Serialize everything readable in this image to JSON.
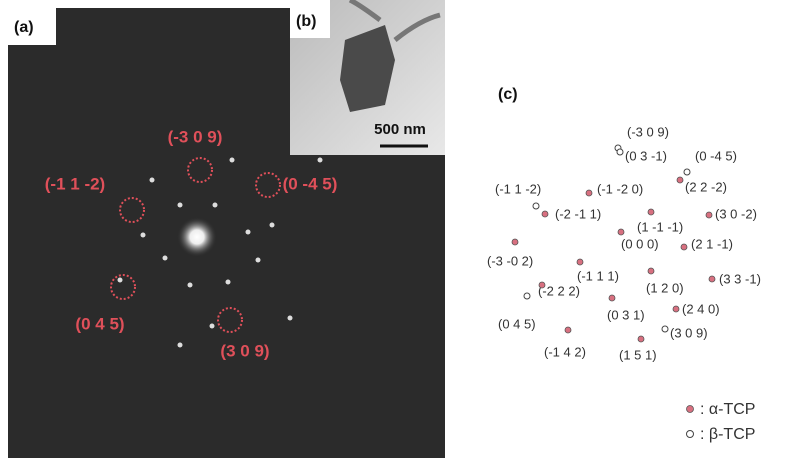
{
  "panel_a": {
    "label": "(a)",
    "spots": [
      "(-3 0 9)",
      "(-1 1 -2)",
      "(0 -4 5)",
      "(0 4 5)",
      "(3 0 9)"
    ]
  },
  "panel_b": {
    "label": "(b)",
    "scale_bar": "500 nm"
  },
  "panel_c": {
    "label": "(c)",
    "points": [
      "(-3 0 9)",
      "(0 3 -1)",
      "(0 -4 5)",
      "(2 2 -2)",
      "(-1 1 -2)",
      "(-1 -2 0)",
      "(-2 -1 1)",
      "(3 0 -2)",
      "(1 -1 -1)",
      "(0 0 0)",
      "(2 1 -1)",
      "(-3 -0 2)",
      "(-1 1 1)",
      "(1 2 0)",
      "(3 3 -1)",
      "(-2 2 2)",
      "(0 3 1)",
      "(2 4 0)",
      "(0 4 5)",
      "(3 0 9)",
      "(-1 4 2)",
      "(1 5 1)"
    ],
    "legend": [
      ": α-TCP",
      ": β-TCP"
    ]
  }
}
